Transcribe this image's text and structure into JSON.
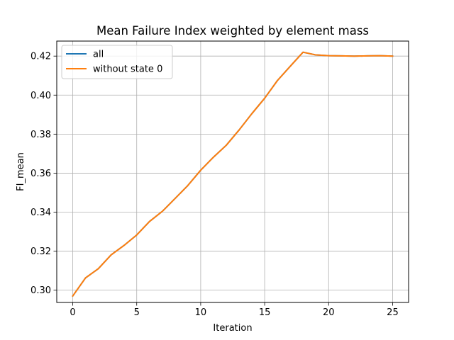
{
  "chart_data": {
    "type": "line",
    "title": "Mean Failure Index weighted by element mass",
    "xlabel": "Iteration",
    "ylabel": "FI_mean",
    "xlim": [
      -1.25,
      26.25
    ],
    "ylim": [
      0.2937,
      0.4277
    ],
    "xticks": [
      0,
      5,
      10,
      15,
      20,
      25
    ],
    "xtick_labels": [
      "0",
      "5",
      "10",
      "15",
      "20",
      "25"
    ],
    "yticks": [
      0.3,
      0.32,
      0.34,
      0.36,
      0.38,
      0.4,
      0.42
    ],
    "ytick_labels": [
      "0.30",
      "0.32",
      "0.34",
      "0.36",
      "0.38",
      "0.40",
      "0.42"
    ],
    "grid": true,
    "legend_position": "upper-left",
    "x": [
      0,
      1,
      2,
      3,
      4,
      5,
      6,
      7,
      8,
      9,
      10,
      11,
      12,
      13,
      14,
      15,
      16,
      17,
      18,
      19,
      20,
      21,
      22,
      23,
      24,
      25
    ],
    "series": [
      {
        "name": "all",
        "color": "#1f77b4",
        "values": [
          0.297,
          0.3063,
          0.311,
          0.3181,
          0.3229,
          0.3283,
          0.3352,
          0.3404,
          0.347,
          0.3537,
          0.3615,
          0.3682,
          0.3743,
          0.3821,
          0.3905,
          0.3984,
          0.4075,
          0.4148,
          0.422,
          0.4206,
          0.4202,
          0.4201,
          0.42,
          0.4201,
          0.4202,
          0.42
        ]
      },
      {
        "name": "without state 0",
        "color": "#ff7f0e",
        "values": [
          0.297,
          0.3063,
          0.311,
          0.3181,
          0.3229,
          0.3283,
          0.3352,
          0.3404,
          0.347,
          0.3537,
          0.3615,
          0.3682,
          0.3743,
          0.3821,
          0.3905,
          0.3984,
          0.4075,
          0.4148,
          0.422,
          0.4206,
          0.4202,
          0.4201,
          0.42,
          0.4201,
          0.4202,
          0.42
        ]
      }
    ]
  }
}
